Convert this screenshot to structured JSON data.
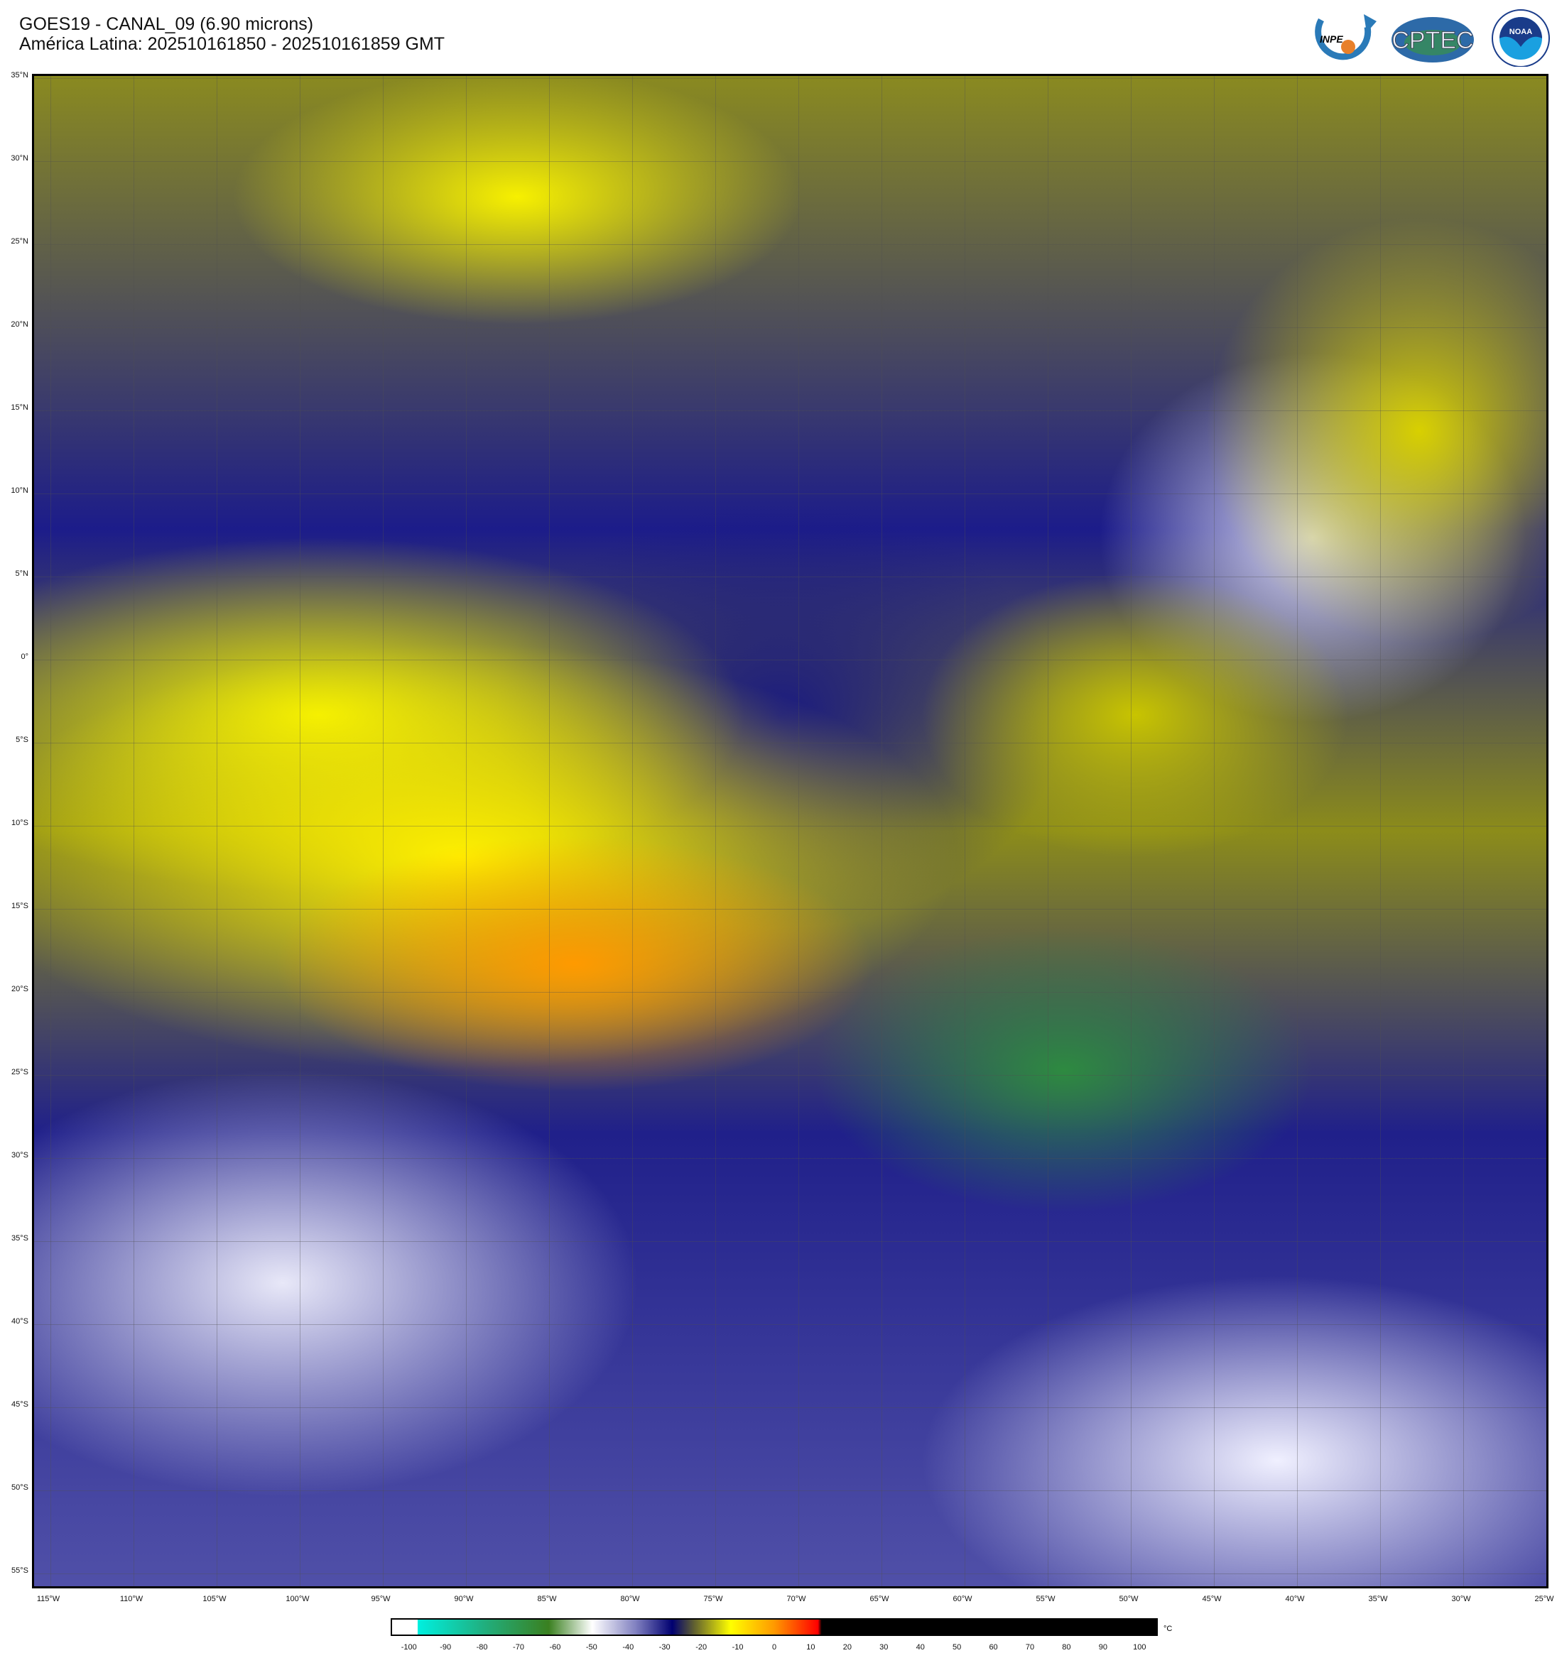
{
  "header": {
    "title_line1": "GOES19 - CANAL_09 (6.90 microns)",
    "title_line2": "América Latina: 202510161850 - 202510161859 GMT"
  },
  "logos": [
    {
      "name": "INPE",
      "text": "INPE"
    },
    {
      "name": "CPTEC",
      "text": "CPTEC"
    },
    {
      "name": "NOAA",
      "text": "NOAA"
    }
  ],
  "map": {
    "lat_labels": [
      "35°N",
      "30°N",
      "25°N",
      "20°N",
      "15°N",
      "10°N",
      "5°N",
      "0°",
      "5°S",
      "10°S",
      "15°S",
      "20°S",
      "25°S",
      "30°S",
      "35°S",
      "40°S",
      "45°S",
      "50°S",
      "55°S"
    ],
    "lon_labels": [
      "115°W",
      "110°W",
      "105°W",
      "100°W",
      "95°W",
      "90°W",
      "85°W",
      "80°W",
      "75°W",
      "70°W",
      "65°W",
      "60°W",
      "55°W",
      "50°W",
      "45°W",
      "40°W",
      "35°W",
      "30°W",
      "25°W"
    ]
  },
  "colorbar": {
    "unit": "°C",
    "ticks": [
      "-100",
      "-90",
      "-80",
      "-70",
      "-60",
      "-50",
      "-40",
      "-30",
      "-20",
      "-10",
      "0",
      "10",
      "20",
      "30",
      "40",
      "50",
      "60",
      "70",
      "80",
      "90",
      "100"
    ],
    "colors": {
      "cyan": "#00f0e0",
      "green": "#3a8020",
      "white": "#ffffff",
      "navy": "#000070",
      "yellow": "#ffff00",
      "orange": "#ff9900",
      "red": "#ff0000",
      "black": "#000000"
    }
  }
}
